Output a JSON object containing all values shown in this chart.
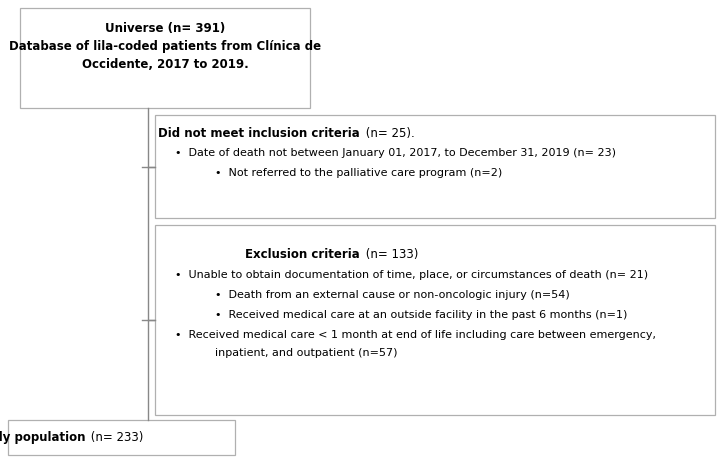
{
  "bg_color": "#ffffff",
  "box_edge_color": "#b0b0b0",
  "line_color": "#888888",
  "top_box": {
    "line1_bold": "Universe (n= 391)",
    "line2_bold": "Database of lila-coded patients from Clínica de",
    "line3_bold": "Occidente, 2017 to 2019."
  },
  "excl1_box": {
    "title_bold": "Did not meet inclusion criteria",
    "title_normal": " (n= 25).",
    "bullet1": "Date of death not between January 01, 2017, to December 31, 2019 (n= 23)",
    "bullet2": "Not referred to the palliative care program (n=2)"
  },
  "excl2_box": {
    "title_bold": "Exclusion criteria",
    "title_normal": " (n= 133)",
    "bullet1": "Unable to obtain documentation of time, place, or circumstances of death (n= 21)",
    "sub1": "Death from an external cause or non-oncologic injury (n=54)",
    "sub2": "Received medical care at an outside facility in the past 6 months (n=1)",
    "bullet2_line1": "Received medical care < 1 month at end of life including care between emergency,",
    "bullet2_line2": "inpatient, and outpatient (n=57)"
  },
  "bottom_box": {
    "title_bold": "Study population",
    "title_normal": " (n= 233)"
  },
  "fontsize": 8.0,
  "title_fontsize": 8.5,
  "font_family": "DejaVu Sans"
}
